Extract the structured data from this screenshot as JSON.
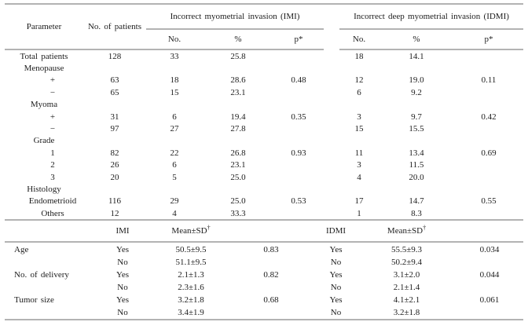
{
  "upper": {
    "header": {
      "parameter": "Parameter",
      "patients": "No. of patients",
      "imi_group": "Incorrect myometrial invasion (IMI)",
      "idmi_group": "Incorrect deep myometrial invasion (IDMI)",
      "no": "No.",
      "pct": "%",
      "p": "p*"
    },
    "rows": [
      {
        "label": "Total patients",
        "indent": false,
        "cells": [
          "128",
          "33",
          "25.8",
          "",
          "18",
          "14.1",
          ""
        ]
      },
      {
        "label": "Menopause",
        "indent": false,
        "cells": [
          "",
          "",
          "",
          "",
          "",
          "",
          ""
        ]
      },
      {
        "label": "+",
        "indent": true,
        "cells": [
          "63",
          "18",
          "28.6",
          "0.48",
          "12",
          "19.0",
          "0.11"
        ]
      },
      {
        "label": "−",
        "indent": true,
        "cells": [
          "65",
          "15",
          "23.1",
          "",
          "6",
          "9.2",
          ""
        ]
      },
      {
        "label": "Myoma",
        "indent": false,
        "cells": [
          "",
          "",
          "",
          "",
          "",
          "",
          ""
        ]
      },
      {
        "label": "+",
        "indent": true,
        "cells": [
          "31",
          "6",
          "19.4",
          "0.35",
          "3",
          "9.7",
          "0.42"
        ]
      },
      {
        "label": "−",
        "indent": true,
        "cells": [
          "97",
          "27",
          "27.8",
          "",
          "15",
          "15.5",
          ""
        ]
      },
      {
        "label": "Grade",
        "indent": false,
        "cells": [
          "",
          "",
          "",
          "",
          "",
          "",
          ""
        ]
      },
      {
        "label": "1",
        "indent": true,
        "cells": [
          "82",
          "22",
          "26.8",
          "0.93",
          "11",
          "13.4",
          "0.69"
        ]
      },
      {
        "label": "2",
        "indent": true,
        "cells": [
          "26",
          "6",
          "23.1",
          "",
          "3",
          "11.5",
          ""
        ]
      },
      {
        "label": "3",
        "indent": true,
        "cells": [
          "20",
          "5",
          "25.0",
          "",
          "4",
          "20.0",
          ""
        ]
      },
      {
        "label": "Histology",
        "indent": false,
        "cells": [
          "",
          "",
          "",
          "",
          "",
          "",
          ""
        ]
      },
      {
        "label": "Endometrioid",
        "indent": true,
        "cells": [
          "116",
          "29",
          "25.0",
          "0.53",
          "17",
          "14.7",
          "0.55"
        ]
      },
      {
        "label": "Others",
        "indent": true,
        "cells": [
          "12",
          "4",
          "33.3",
          "",
          "1",
          "8.3",
          ""
        ]
      }
    ]
  },
  "lower": {
    "header": {
      "imi": "IMI",
      "idmi": "IDMI",
      "mean_sd": "Mean±SD",
      "dagger": "†"
    },
    "rows": [
      {
        "label": "Age",
        "indent": false,
        "cells": [
          "Yes",
          "50.5±9.5",
          "0.83",
          "Yes",
          "55.5±9.3",
          "0.034"
        ]
      },
      {
        "label": "",
        "indent": false,
        "cells": [
          "No",
          "51.1±9.5",
          "",
          "No",
          "50.2±9.4",
          ""
        ]
      },
      {
        "label": "No. of delivery",
        "indent": false,
        "cells": [
          "Yes",
          "2.1±1.3",
          "0.82",
          "Yes",
          "3.1±2.0",
          "0.044"
        ]
      },
      {
        "label": "",
        "indent": false,
        "cells": [
          "No",
          "2.3±1.6",
          "",
          "No",
          "2.1±1.4",
          ""
        ]
      },
      {
        "label": "Tumor size",
        "indent": false,
        "cells": [
          "Yes",
          "3.2±1.8",
          "0.68",
          "Yes",
          "4.1±2.1",
          "0.061"
        ]
      },
      {
        "label": "",
        "indent": false,
        "cells": [
          "No",
          "3.4±1.9",
          "",
          "No",
          "3.2±1.8",
          ""
        ]
      }
    ]
  }
}
